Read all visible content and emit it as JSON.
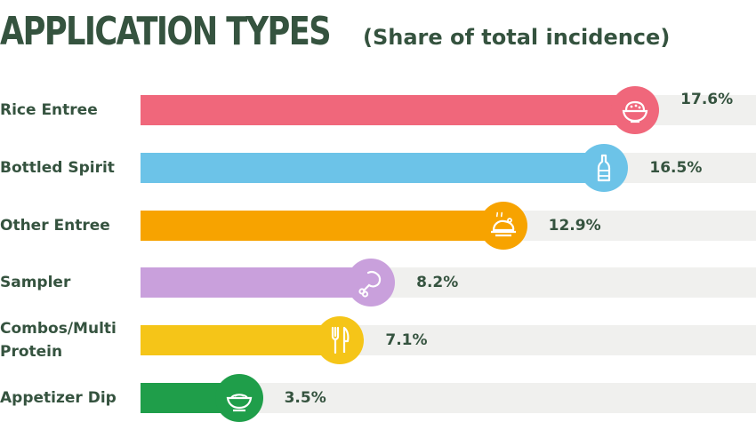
{
  "chart_data": {
    "type": "bar",
    "orientation": "horizontal",
    "title": "APPLICATION TYPES",
    "subtitle": "(Share of total incidence)",
    "categories": [
      "Rice Entree",
      "Bottled Spirit",
      "Other Entree",
      "Sampler",
      "Combos/Multi Protein",
      "Appetizer Dip"
    ],
    "label_lines": [
      [
        "Rice Entree"
      ],
      [
        "Bottled Spirit"
      ],
      [
        "Other Entree"
      ],
      [
        "Sampler"
      ],
      [
        "Combos/Multi",
        "Protein"
      ],
      [
        "Appetizer Dip"
      ]
    ],
    "values": [
      17.6,
      16.5,
      12.9,
      8.2,
      7.1,
      3.5
    ],
    "value_labels": [
      "17.6%",
      "16.5%",
      "12.9%",
      "8.2%",
      "7.1%",
      "3.5%"
    ],
    "colors": [
      "#f0677b",
      "#6cc3e8",
      "#f7a300",
      "#c9a0dc",
      "#f5c518",
      "#1f9e4a"
    ],
    "icons": [
      "rice-bowl-icon",
      "bottle-icon",
      "roast-chicken-icon",
      "drumstick-icon",
      "fork-knife-icon",
      "dip-bowl-icon"
    ],
    "xlim": [
      0,
      20
    ],
    "grid": false,
    "legend": "none"
  }
}
